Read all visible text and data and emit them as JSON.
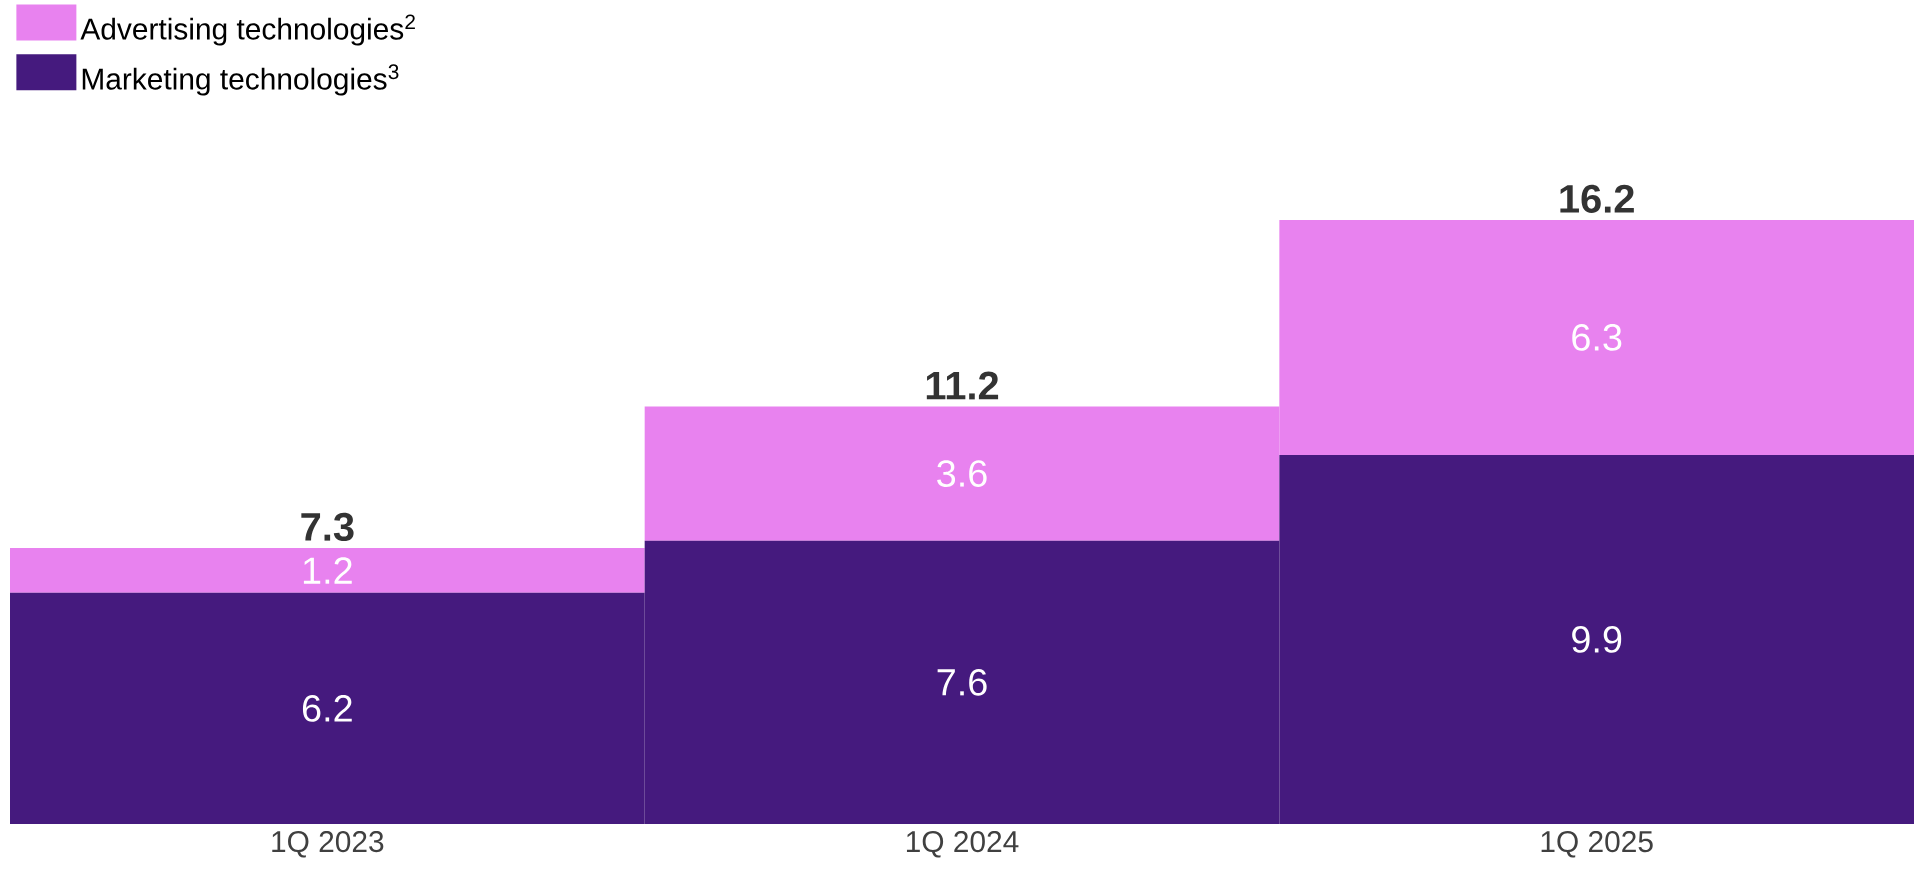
{
  "chart_data": {
    "type": "bar",
    "stacked": true,
    "categories": [
      "1Q 2023",
      "1Q 2024",
      "1Q 2025"
    ],
    "series": [
      {
        "name": "Marketing technologies$^{3}$",
        "color": "#451a7e",
        "values": [
          6.2,
          7.6,
          9.9
        ]
      },
      {
        "name": "Advertising technologies$^{2}$",
        "color": "#e882ef",
        "values": [
          1.2,
          3.6,
          6.3
        ]
      }
    ],
    "data_labels": true,
    "totals": [
      "7.3",
      "11.2",
      "16.2"
    ],
    "legend": "top left"
  }
}
